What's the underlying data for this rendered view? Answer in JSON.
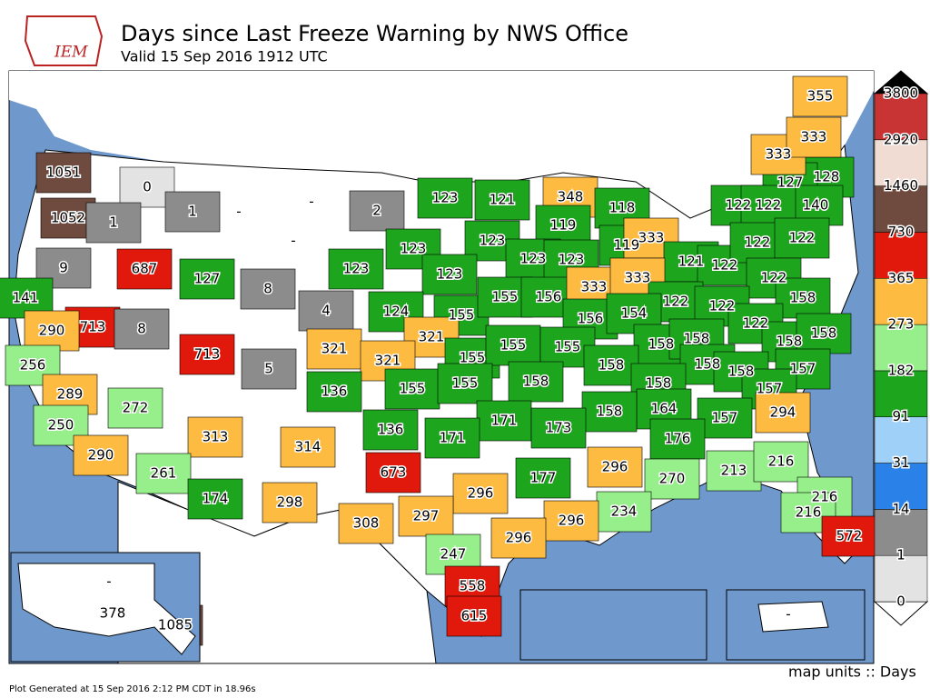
{
  "header": {
    "title": "Days since Last Freeze Warning by NWS Office",
    "subtitle": "Valid 15 Sep 2016 1912 UTC",
    "logo": "IEM"
  },
  "map": {
    "labels": [
      1051,
      0,
      1052,
      1,
      1,
      "-",
      "-",
      2,
      "-",
      123,
      121,
      348,
      118,
      128,
      127,
      140,
      122,
      122,
      333,
      333,
      355,
      9,
      687,
      127,
      8,
      123,
      123,
      123,
      119,
      123,
      123,
      123,
      119,
      333,
      121,
      122,
      122,
      122,
      122,
      141,
      713,
      8,
      4,
      124,
      155,
      155,
      156,
      333,
      333,
      122,
      122,
      158,
      290,
      321,
      156,
      154,
      122,
      713,
      321,
      321,
      155,
      155,
      155,
      158,
      158,
      158,
      158,
      256,
      5,
      136,
      155,
      155,
      158,
      158,
      158,
      158,
      157,
      289,
      272,
      158,
      157,
      164,
      158,
      157,
      294,
      250,
      136,
      171,
      173,
      313,
      314,
      171,
      176,
      290,
      261,
      673,
      296,
      270,
      213,
      216,
      174,
      298,
      177,
      296,
      216,
      234,
      216,
      308,
      297,
      296,
      572,
      296,
      247,
      558,
      615,
      "-",
      378,
      1085,
      "-"
    ]
  },
  "legend": {
    "levels": [
      0,
      1,
      14,
      31,
      91,
      182,
      273,
      365,
      730,
      1460,
      2920,
      3800
    ],
    "colors": [
      "#e3e3e3",
      "#8c8c8c",
      "#2a82e8",
      "#9fd0f7",
      "#1ea51e",
      "#96ef8a",
      "#fdbb42",
      "#e0190c",
      "#6e4b3e",
      "#f0dcd2",
      "#c83434"
    ],
    "over_color": "#000000",
    "under_color": "#ffffff",
    "units": "map units :: Days"
  },
  "footer": "Plot Generated at 15 Sep 2016 2:12 PM CDT in 18.96s"
}
